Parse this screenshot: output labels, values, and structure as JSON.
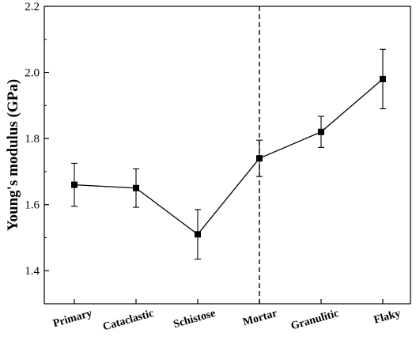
{
  "chart_data": {
    "type": "line",
    "categories": [
      "Primary",
      "Cataclastic",
      "Schistose",
      "Mortar",
      "Granulitic",
      "Flaky"
    ],
    "series": [
      {
        "values": [
          1.66,
          1.65,
          1.51,
          1.74,
          1.82,
          1.98
        ],
        "error": [
          0.065,
          0.058,
          0.075,
          0.055,
          0.047,
          0.09
        ]
      }
    ],
    "title": "",
    "xlabel": "",
    "ylabel": "Young's modulus (GPa)",
    "ylim": [
      1.3,
      2.2
    ],
    "yticks": [
      1.4,
      1.6,
      1.8,
      2.0,
      2.2
    ],
    "ytick_labels": [
      "1.4",
      "1.6",
      "1.8",
      "2.0",
      "2.2"
    ],
    "divider_category": "Mortar",
    "grid": false,
    "legend": "none",
    "colors": {
      "line": "#000000",
      "marker": "#000000",
      "divider": "#000000"
    }
  }
}
